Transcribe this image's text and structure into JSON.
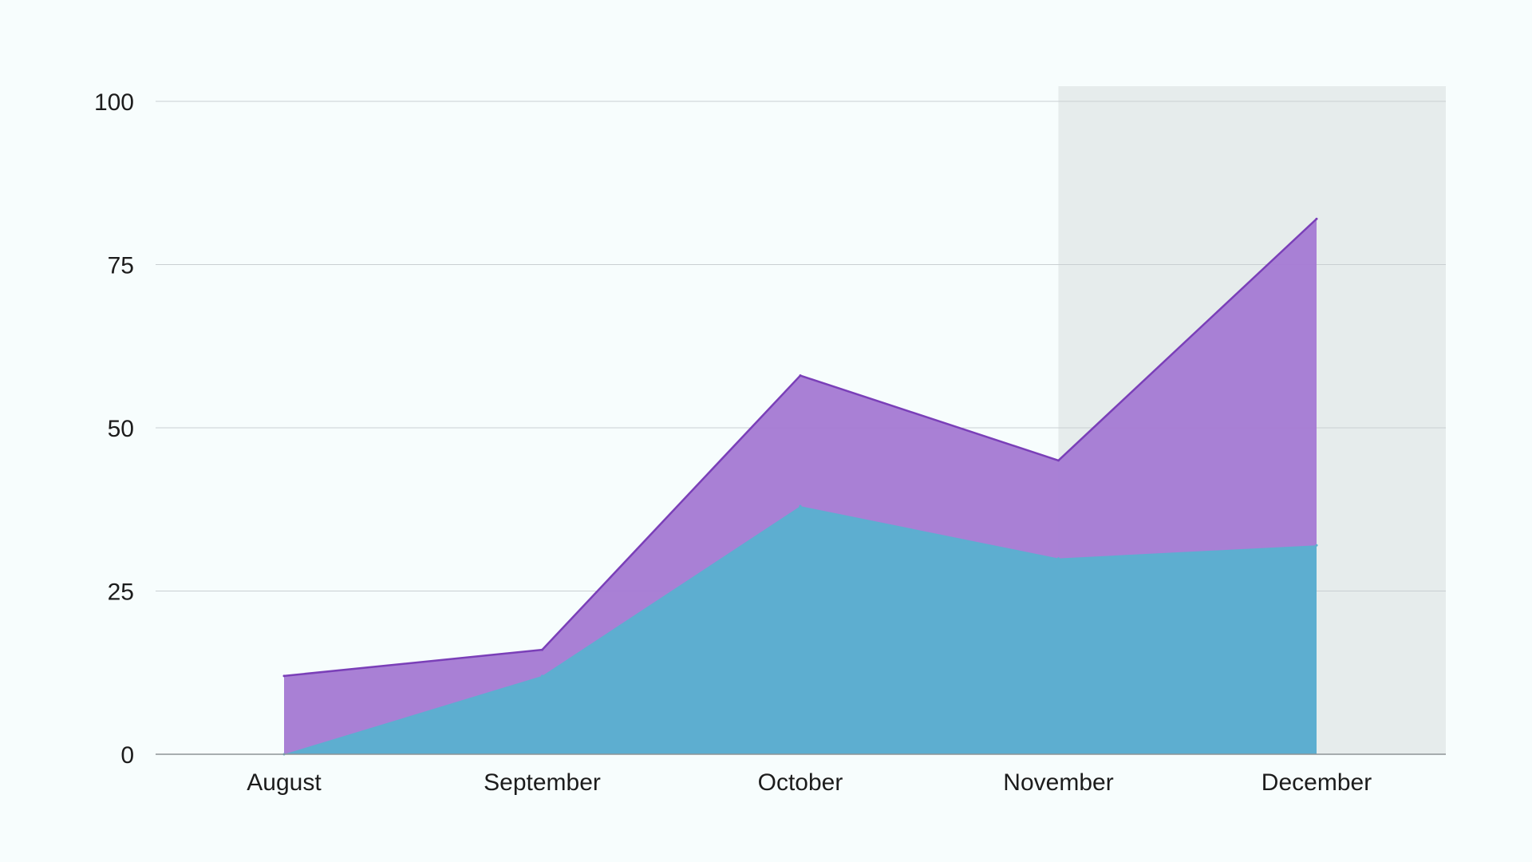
{
  "chart_data": {
    "type": "area",
    "stacked": false,
    "categories": [
      "August",
      "September",
      "October",
      "November",
      "December"
    ],
    "series": [
      {
        "values": [
          12,
          16,
          58,
          45,
          82
        ],
        "color": "#a67bd3",
        "line_color": "#7a3fb8"
      },
      {
        "values": [
          0,
          12,
          38,
          30,
          32
        ],
        "color": "#5ab0cf"
      }
    ],
    "y_ticks": [
      0,
      25,
      50,
      75,
      100
    ],
    "ylim": [
      0,
      100
    ],
    "grid": true,
    "highlight": {
      "from_category": "November",
      "shade_color": "#e6ecec"
    },
    "background_color": "#f7fdfd"
  }
}
